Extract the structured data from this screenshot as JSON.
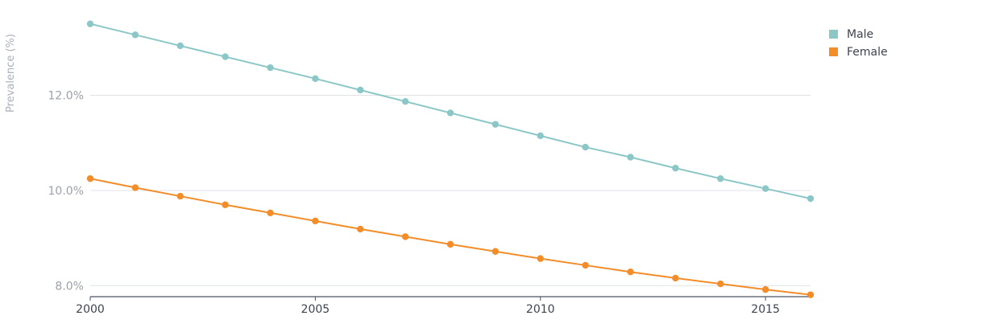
{
  "colors": {
    "male": "#8cc7c8",
    "female": "#f28d2a",
    "grid": "#dfe3e8",
    "axis": "#4a5360"
  },
  "chart_data": {
    "type": "line",
    "ylabel": "Prevalence (%)",
    "xlim": [
      2000,
      2016
    ],
    "ylim": [
      7.5,
      13.9
    ],
    "x": [
      2000,
      2001,
      2002,
      2003,
      2004,
      2005,
      2006,
      2007,
      2008,
      2009,
      2010,
      2011,
      2012,
      2013,
      2014,
      2015,
      2016
    ],
    "x_ticks": [
      2000,
      2005,
      2010,
      2015
    ],
    "x_tick_labels": [
      "2000",
      "2005",
      "2010",
      "2015"
    ],
    "y_ticks": [
      8.0,
      10.0,
      12.0
    ],
    "y_tick_labels": [
      "8.0%",
      "10.0%",
      "12.0%"
    ],
    "grid": "horizontal",
    "legend_position": "top-right",
    "series": [
      {
        "name": "Male",
        "color_key": "male",
        "values": [
          13.5,
          13.27,
          13.04,
          12.81,
          12.58,
          12.35,
          12.11,
          11.87,
          11.63,
          11.39,
          11.15,
          10.91,
          10.7,
          10.47,
          10.25,
          10.04,
          9.83
        ]
      },
      {
        "name": "Female",
        "color_key": "female",
        "values": [
          10.25,
          10.06,
          9.88,
          9.7,
          9.53,
          9.36,
          9.19,
          9.03,
          8.87,
          8.72,
          8.57,
          8.43,
          8.29,
          8.16,
          8.04,
          7.92,
          7.81
        ]
      }
    ]
  }
}
